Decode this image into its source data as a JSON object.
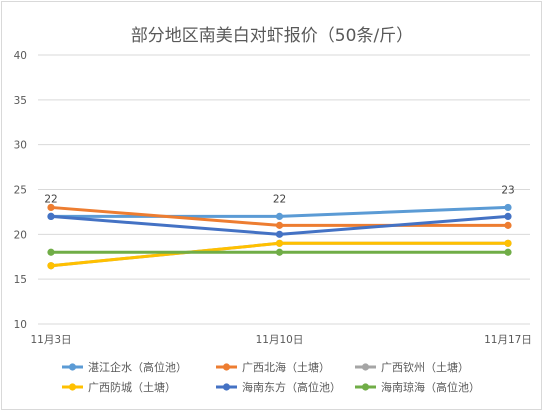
{
  "chart_data": {
    "type": "line",
    "title": "部分地区南美白对虾报价（50条/斤）",
    "categories": [
      "11月3日",
      "11月10日",
      "11月17日"
    ],
    "ylim": [
      10,
      40
    ],
    "yticks": [
      10,
      15,
      20,
      25,
      30,
      35,
      40
    ],
    "grid": true,
    "legend_position": "bottom",
    "series": [
      {
        "name": "湛江企水（高位池）",
        "values": [
          22,
          22,
          23
        ],
        "color": "#5b9bd5",
        "labels": [
          "22",
          "22",
          "23"
        ]
      },
      {
        "name": "广西北海（土塘）",
        "values": [
          23,
          21,
          21
        ],
        "color": "#ed7d31"
      },
      {
        "name": "广西钦州（土塘）",
        "values": [
          16.5,
          19,
          19
        ],
        "color": "#a5a5a5"
      },
      {
        "name": "广西防城（土塘）",
        "values": [
          16.5,
          19,
          19
        ],
        "color": "#ffc000"
      },
      {
        "name": "海南东方（高位池）",
        "values": [
          22,
          20,
          22
        ],
        "color": "#4472c4"
      },
      {
        "name": "海南琼海（高位池）",
        "values": [
          18,
          18,
          18
        ],
        "color": "#70ad47"
      }
    ]
  }
}
